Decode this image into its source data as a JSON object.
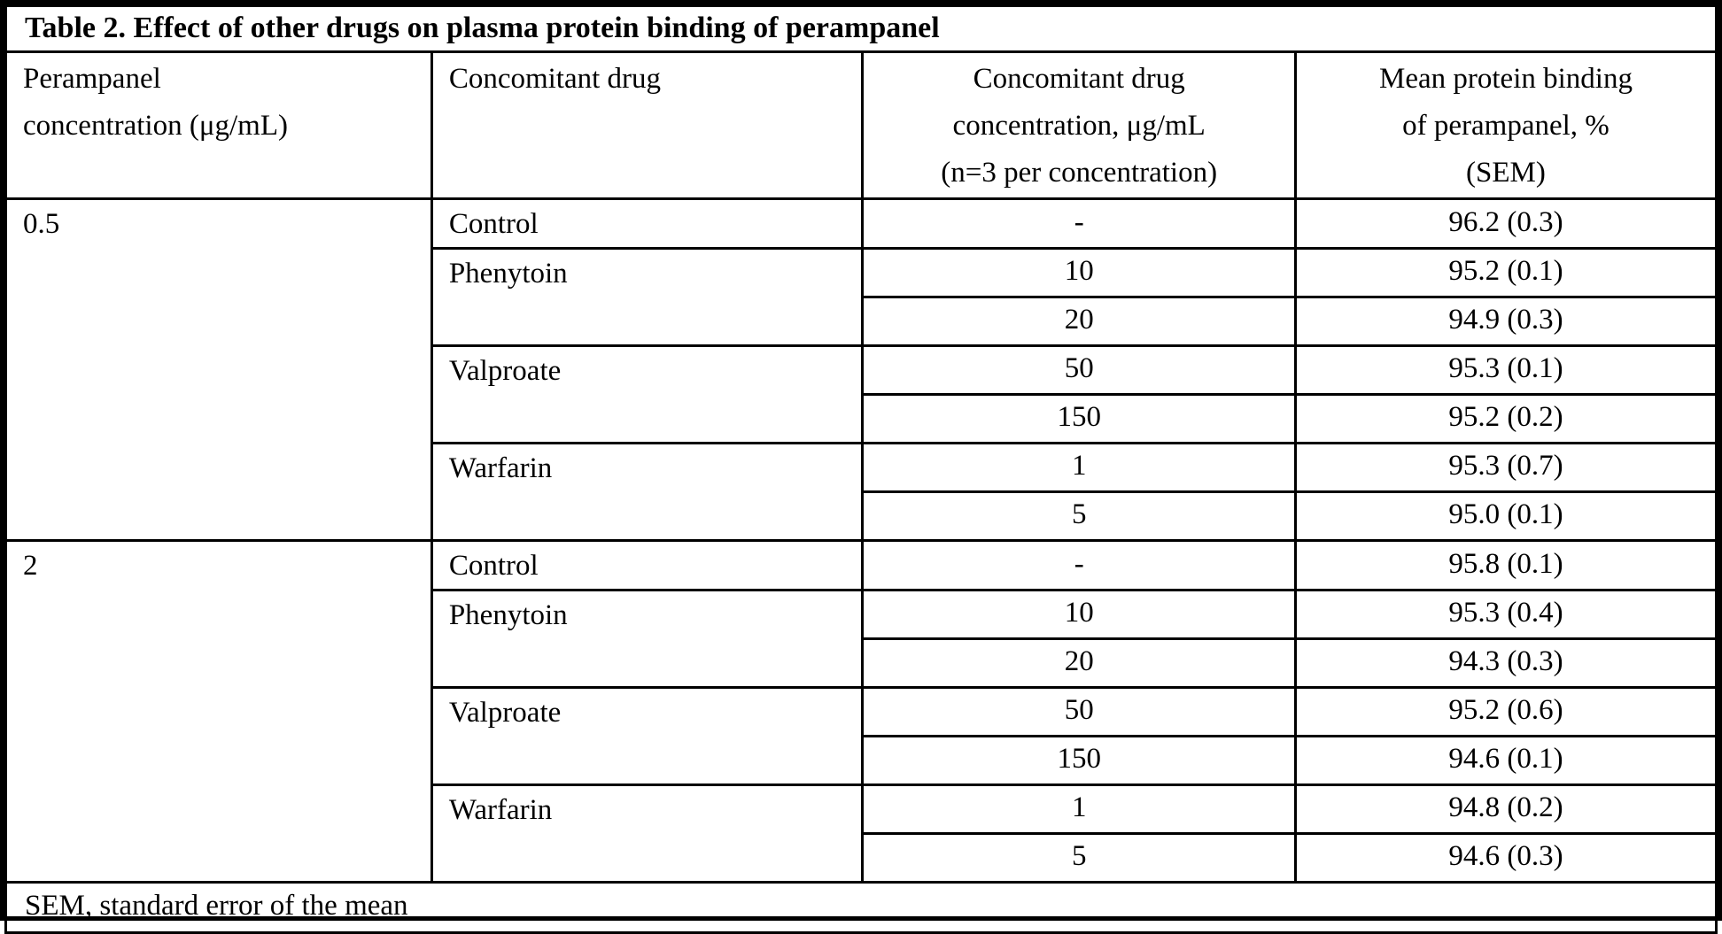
{
  "title": "Table 2. Effect of other drugs on plasma protein binding of perampanel",
  "headers": {
    "perampanel_concentration": "Perampanel\nconcentration (μg/mL)",
    "concomitant_drug": "Concomitant drug",
    "concomitant_drug_concentration": "Concomitant drug\nconcentration, μg/mL\n(n=3 per concentration)",
    "mean_protein_binding": "Mean protein binding\nof perampanel, %\n(SEM)"
  },
  "groups": [
    {
      "perampanel_concentration": "0.5",
      "drugs": [
        {
          "name": "Control",
          "rows": [
            {
              "concentration": "-",
              "binding": "96.2 (0.3)"
            }
          ]
        },
        {
          "name": "Phenytoin",
          "rows": [
            {
              "concentration": "10",
              "binding": "95.2 (0.1)"
            },
            {
              "concentration": "20",
              "binding": "94.9 (0.3)"
            }
          ]
        },
        {
          "name": "Valproate",
          "rows": [
            {
              "concentration": "50",
              "binding": "95.3 (0.1)"
            },
            {
              "concentration": "150",
              "binding": "95.2 (0.2)"
            }
          ]
        },
        {
          "name": "Warfarin",
          "rows": [
            {
              "concentration": "1",
              "binding": "95.3 (0.7)"
            },
            {
              "concentration": "5",
              "binding": "95.0 (0.1)"
            }
          ]
        }
      ]
    },
    {
      "perampanel_concentration": "2",
      "drugs": [
        {
          "name": "Control",
          "rows": [
            {
              "concentration": "-",
              "binding": "95.8 (0.1)"
            }
          ]
        },
        {
          "name": "Phenytoin",
          "rows": [
            {
              "concentration": "10",
              "binding": "95.3 (0.4)"
            },
            {
              "concentration": "20",
              "binding": "94.3 (0.3)"
            }
          ]
        },
        {
          "name": "Valproate",
          "rows": [
            {
              "concentration": "50",
              "binding": "95.2 (0.6)"
            },
            {
              "concentration": "150",
              "binding": "94.6 (0.1)"
            }
          ]
        },
        {
          "name": "Warfarin",
          "rows": [
            {
              "concentration": "1",
              "binding": "94.8 (0.2)"
            },
            {
              "concentration": "5",
              "binding": "94.6 (0.3)"
            }
          ]
        }
      ]
    }
  ],
  "footnote": "SEM, standard error of the mean",
  "colors": {
    "text": "#000000",
    "background": "#ffffff",
    "border": "#000000"
  }
}
